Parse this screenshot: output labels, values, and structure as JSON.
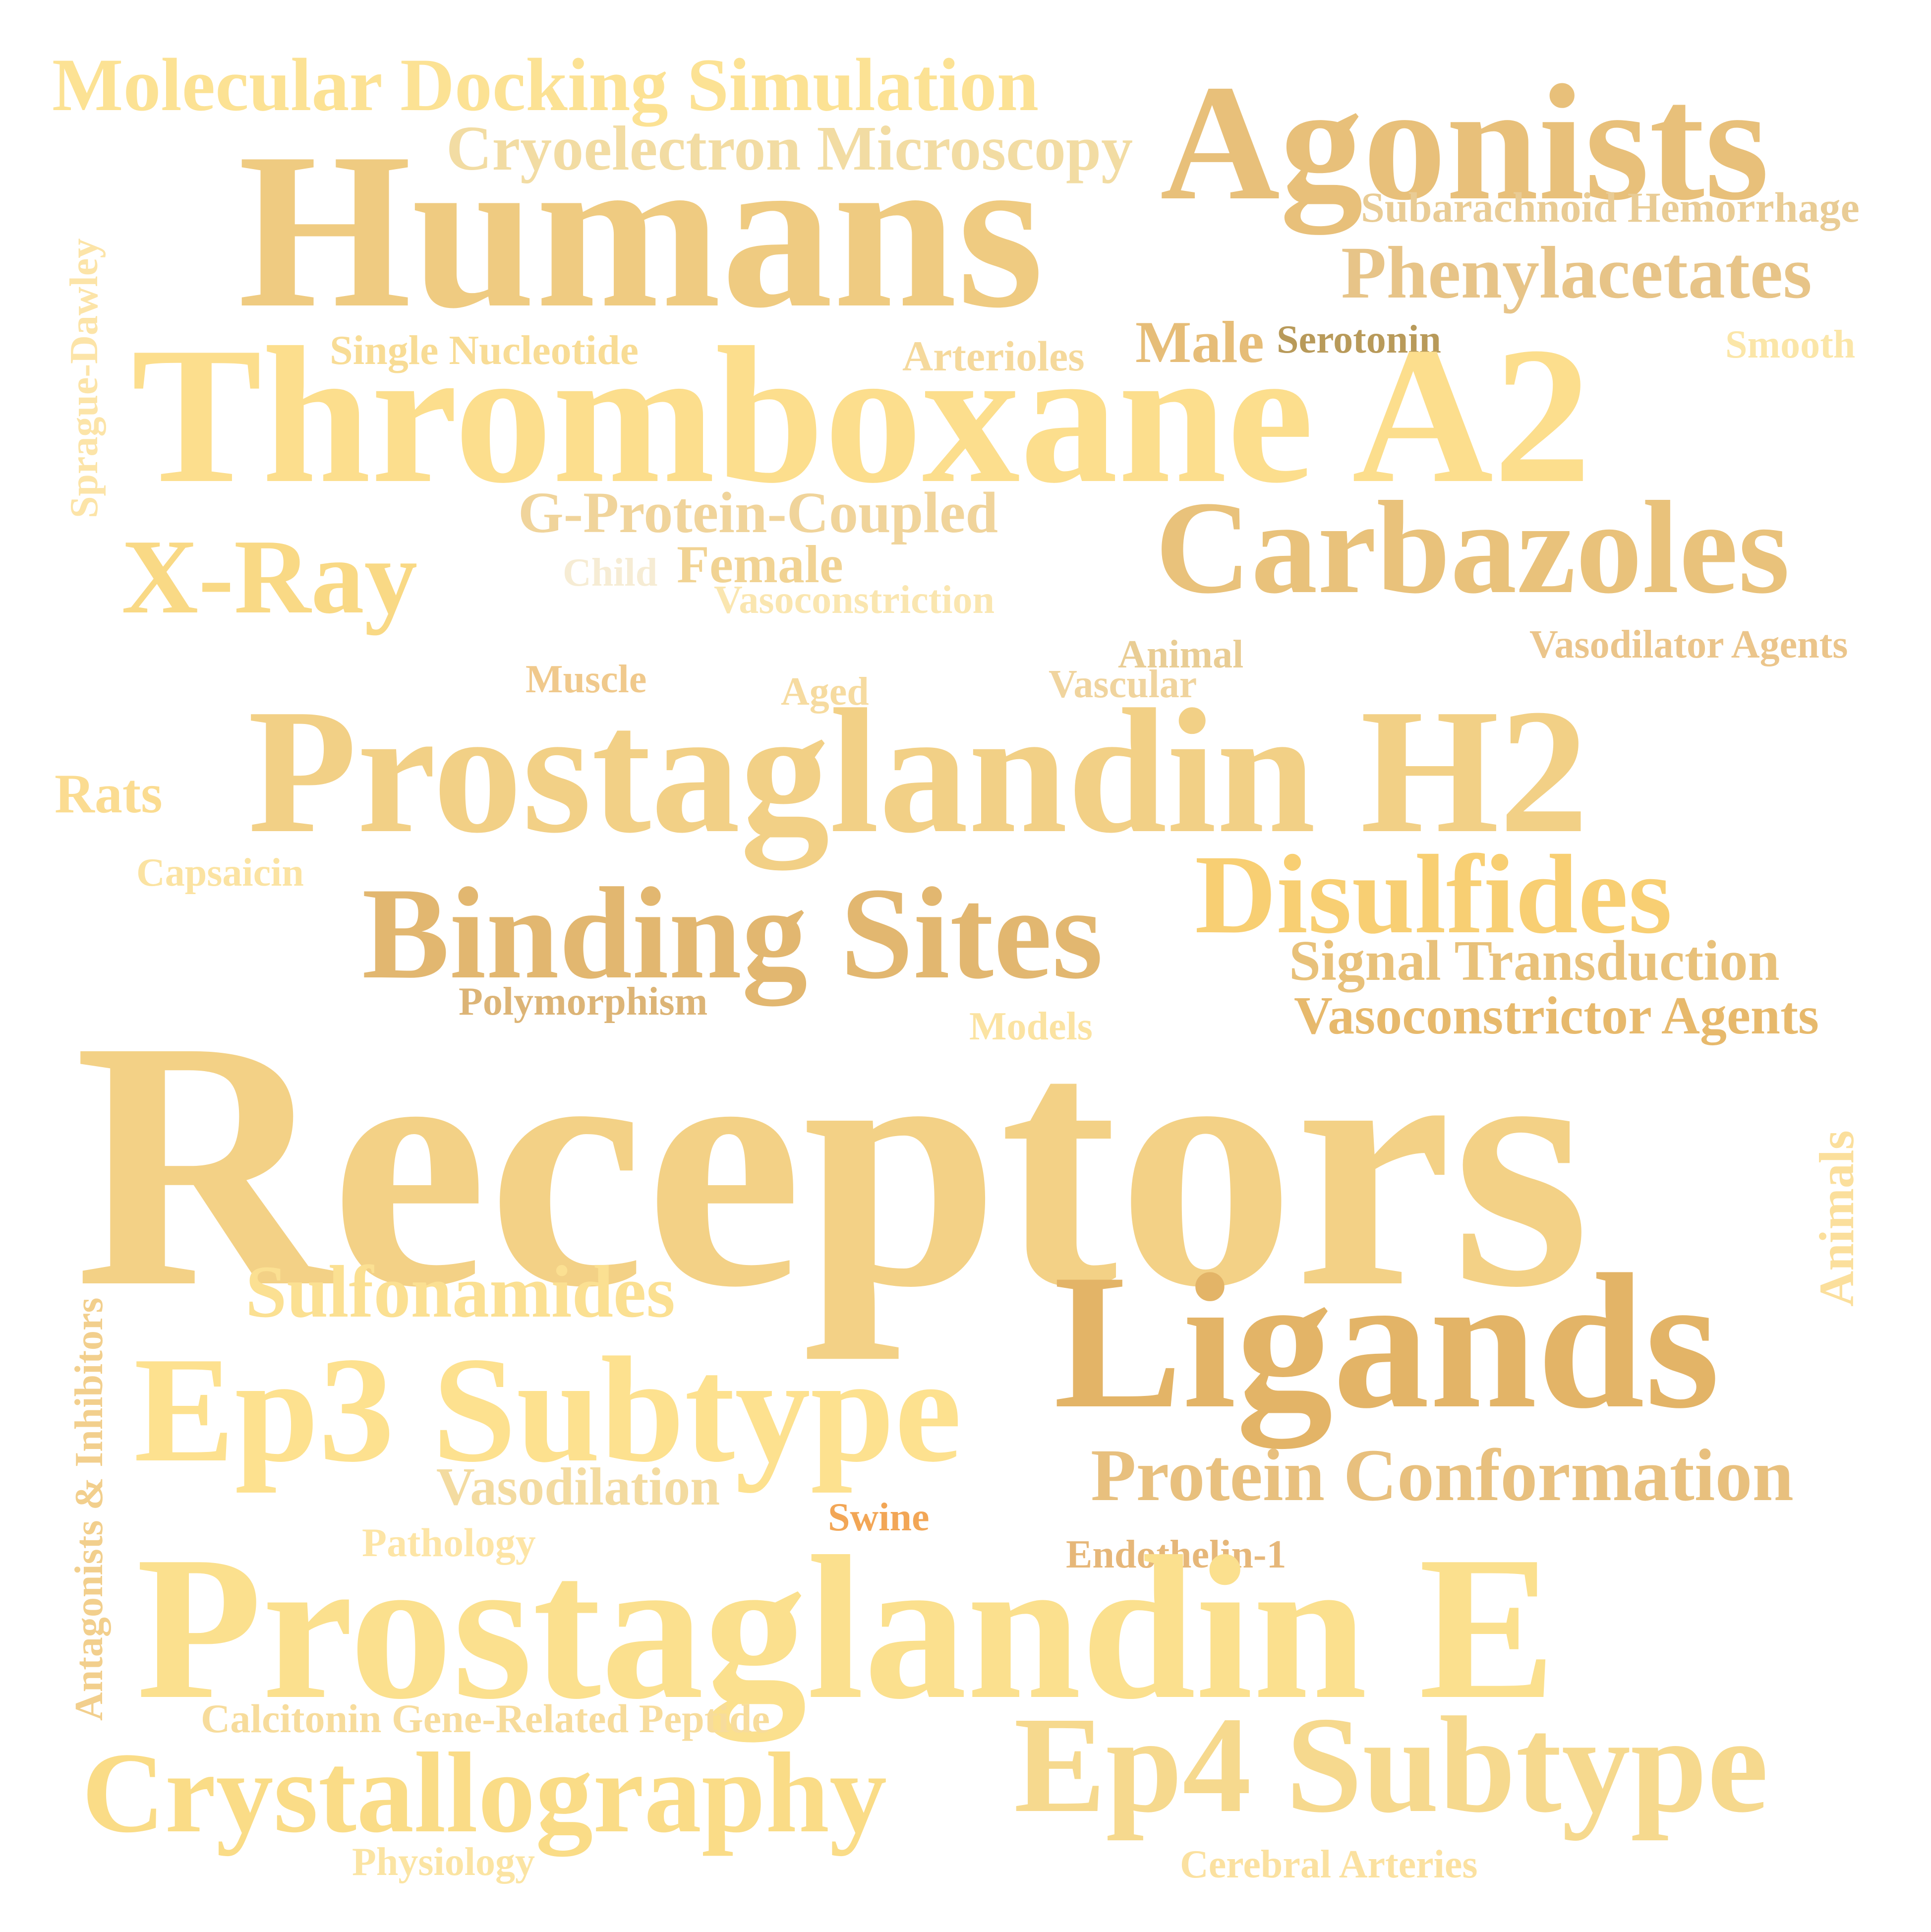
{
  "words": {
    "receptors": {
      "text": "Receptors",
      "color": "#f3d186"
    },
    "prostaglandin_e": {
      "text": "Prostaglandin E",
      "color": "#fbe08e"
    },
    "thromboxane_a2": {
      "text": "Thromboxane A2",
      "color": "#fcde8d"
    },
    "prostaglandin_h2": {
      "text": "Prostaglandin H2",
      "color": "#f2d086"
    },
    "humans": {
      "text": "Humans",
      "color": "#efcb81"
    },
    "ligands": {
      "text": "Ligands",
      "color": "#e3b467"
    },
    "agonists": {
      "text": "Agonists",
      "color": "#e8c07a"
    },
    "ep3_subtype": {
      "text": "Ep3 Subtype",
      "color": "#fde18f"
    },
    "ep4_subtype": {
      "text": "Ep4 Subtype",
      "color": "#f6d98e"
    },
    "binding_sites": {
      "text": "Binding Sites",
      "color": "#e2b770"
    },
    "carbazoles": {
      "text": "Carbazoles",
      "color": "#e9c27b"
    },
    "disulfides": {
      "text": "Disulfides",
      "color": "#f8cf73"
    },
    "crystallography": {
      "text": "Crystallography",
      "color": "#fadc87"
    },
    "x_ray": {
      "text": "X-Ray",
      "color": "#f9d985"
    },
    "molecular_docking": {
      "text": "Molecular Docking Simulation",
      "color": "#fce294"
    },
    "cryoelectron": {
      "text": "Cryoelectron Microscopy",
      "color": "#f2dca3"
    },
    "sulfonamides": {
      "text": "Sulfonamides",
      "color": "#fbe092"
    },
    "protein_conformation": {
      "text": "Protein Conformation",
      "color": "#e8c07e"
    },
    "phenylacetates": {
      "text": "Phenylacetates",
      "color": "#e7c488"
    },
    "signal_transduction": {
      "text": "Signal Transduction",
      "color": "#e8c17a"
    },
    "vasoconstrictor_agents": {
      "text": "Vasoconstrictor Agents",
      "color": "#e7b96c"
    },
    "subarachnoid": {
      "text": "Subarachnoid Hemorrhage",
      "color": "#e9cc95"
    },
    "g_protein": {
      "text": "G-Protein-Coupled",
      "color": "#f0d49b"
    },
    "vasodilation": {
      "text": "Vasodilation",
      "color": "#f3dba0"
    },
    "female": {
      "text": "Female",
      "color": "#f1d393"
    },
    "male": {
      "text": "Male",
      "color": "#e6bd78"
    },
    "serotonin": {
      "text": "Serotonin",
      "color": "#b89a5a"
    },
    "smooth": {
      "text": "Smooth",
      "color": "#fbe6a8"
    },
    "arterioles": {
      "text": "Arterioles",
      "color": "#f5d99c"
    },
    "single_nucleotide": {
      "text": "Single Nucleotide",
      "color": "#f8dc95"
    },
    "child": {
      "text": "Child",
      "color": "#f6ecd4"
    },
    "vasoconstriction": {
      "text": "Vasoconstriction",
      "color": "#fae6b0"
    },
    "animal": {
      "text": "Animal",
      "color": "#e9cd94"
    },
    "vascular": {
      "text": "Vascular",
      "color": "#f0d49e"
    },
    "vasodilator_agents": {
      "text": "Vasodilator Agents",
      "color": "#ebc58b"
    },
    "muscle": {
      "text": "Muscle",
      "color": "#f0c98c"
    },
    "aged": {
      "text": "Aged",
      "color": "#f6dba0"
    },
    "rats": {
      "text": "Rats",
      "color": "#fbdc91"
    },
    "capsaicin": {
      "text": "Capsaicin",
      "color": "#fbe3a2"
    },
    "polymorphism": {
      "text": "Polymorphism",
      "color": "#dcb476"
    },
    "models": {
      "text": "Models",
      "color": "#fbe3a2"
    },
    "swine": {
      "text": "Swine",
      "color": "#f2a656"
    },
    "pathology": {
      "text": "Pathology",
      "color": "#fde5a6"
    },
    "endothelin": {
      "text": "Endothelin-1",
      "color": "#e6b779"
    },
    "calcitonin": {
      "text": "Calcitonin Gene-Related Peptide",
      "color": "#f7dc9c"
    },
    "physiology": {
      "text": "Physiology",
      "color": "#fbe4a3"
    },
    "cerebral_arteries": {
      "text": "Cerebral Arteries",
      "color": "#fbe1a0"
    },
    "sprague_dawley": {
      "text": "Sprague-Dawley",
      "color": "#fce4a8"
    },
    "antagonists": {
      "text": "Antagonists & Inhibitors",
      "color": "#f2cf8d"
    },
    "animals": {
      "text": "Animals",
      "color": "#fbdf9c"
    }
  }
}
